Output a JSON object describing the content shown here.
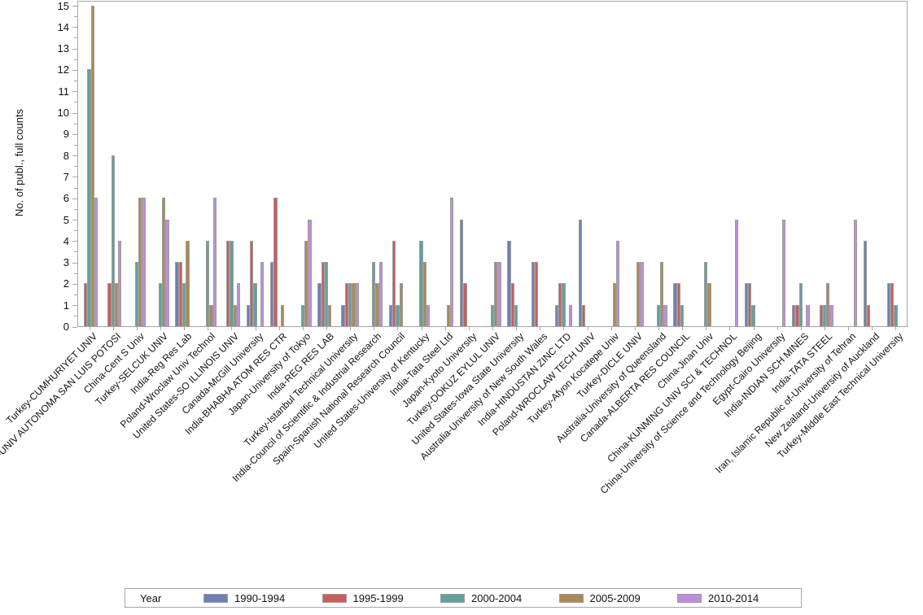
{
  "legend": {
    "title": "Year"
  },
  "chart_data": {
    "type": "bar",
    "title": "",
    "xlabel": "",
    "ylabel": "No. of publ., full counts",
    "ylim": [
      0,
      15.25
    ],
    "yticks": [
      0,
      1,
      2,
      3,
      4,
      5,
      6,
      7,
      8,
      9,
      10,
      11,
      12,
      13,
      14,
      15
    ],
    "ytick_minor_step": 0.5,
    "grid": false,
    "legend_position": "bottom",
    "legend_title": "Year",
    "axis_color": "#A6A6A6",
    "bar_outline_color": "#9D9D9D",
    "categories": [
      "Turkey-CUMHURIYET UNIV",
      "Mexico-UNIV AUTONOMA SAN LUIS POTOSI",
      "China-Cent S Univ",
      "Turkey-SELCUK UNIV",
      "India-Reg Res Lab",
      "Poland-Wroclaw Univ Technol",
      "United States-SO ILLINOIS UNIV",
      "Canada-McGill University",
      "India-BHABHA ATOM RES CTR",
      "Japan-University of Tokyo",
      "India-REG RES LAB",
      "Turkey-Istanbul Technical University",
      "India-Council of Scientific & Industrial Research",
      "Spain-Spanish National Research Council",
      "United States-University of Kentucky",
      "India-Tata Steel Ltd",
      "Japan-Kyoto University",
      "Turkey-DOKUZ EYLUL UNIV",
      "United States-Iowa State University",
      "Australia-University of New South Wales",
      "India-HINDUSTAN ZINC LTD",
      "Poland-WROCLAW TECH UNIV",
      "Turkey-Afyon Kocatepe Univ",
      "Turkey-DICLE UNIV",
      "Australia-University of Queensland",
      "Canada-ALBERTA RES COUNCIL",
      "China-Jinan Univ",
      "China-KUNMING UNIV SCI & TECHNOL",
      "China-University of Science and Technology Beijing",
      "Egypt-Cairo University",
      "India-INDIAN SCH MINES",
      "India-TATA STEEL",
      "Iran, Islamic Republic of-University of Tehran",
      "New Zealand-University of Auckland",
      "Turkey-Middle East Technical University"
    ],
    "series": [
      {
        "name": "1990-1994",
        "color": "#6F80B2",
        "values": [
          0,
          0,
          0,
          0,
          3,
          0,
          0,
          1,
          3,
          0,
          2,
          1,
          0,
          1,
          0,
          0,
          5,
          0,
          4,
          3,
          1,
          5,
          0,
          0,
          0,
          2,
          0,
          0,
          2,
          0,
          1,
          0,
          0,
          4,
          2
        ]
      },
      {
        "name": "1995-1999",
        "color": "#CA5C5C",
        "values": [
          2,
          2,
          0,
          0,
          3,
          0,
          4,
          4,
          6,
          0,
          3,
          2,
          0,
          4,
          0,
          0,
          2,
          0,
          2,
          3,
          2,
          1,
          0,
          0,
          0,
          2,
          0,
          0,
          2,
          0,
          1,
          1,
          0,
          1,
          2
        ]
      },
      {
        "name": "2000-2004",
        "color": "#63A09E",
        "values": [
          12,
          8,
          3,
          2,
          2,
          4,
          4,
          2,
          0,
          1,
          3,
          2,
          3,
          1,
          4,
          0,
          0,
          1,
          1,
          0,
          2,
          0,
          0,
          0,
          1,
          1,
          3,
          0,
          1,
          0,
          2,
          1,
          0,
          0,
          1
        ]
      },
      {
        "name": "2005-2009",
        "color": "#AB8A55",
        "values": [
          15,
          2,
          6,
          6,
          4,
          1,
          1,
          0,
          1,
          4,
          1,
          2,
          2,
          2,
          3,
          1,
          0,
          3,
          0,
          0,
          0,
          0,
          2,
          3,
          3,
          0,
          2,
          0,
          0,
          0,
          0,
          2,
          0,
          0,
          0
        ]
      },
      {
        "name": "2010-2014",
        "color": "#BB8FD9",
        "values": [
          6,
          4,
          6,
          5,
          0,
          6,
          2,
          3,
          0,
          5,
          0,
          2,
          3,
          0,
          1,
          6,
          0,
          3,
          0,
          0,
          1,
          0,
          4,
          3,
          1,
          0,
          0,
          5,
          0,
          5,
          1,
          1,
          5,
          0,
          0
        ]
      }
    ]
  }
}
